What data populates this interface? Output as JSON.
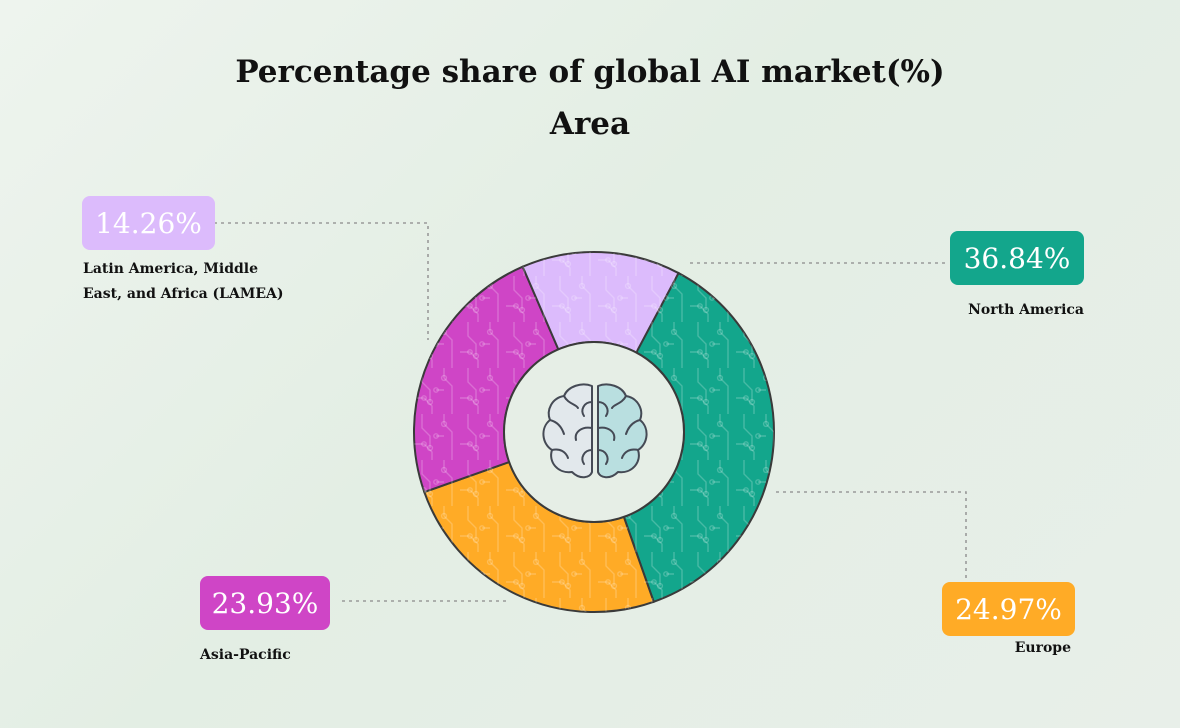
{
  "title": "Percentage share of global AI market(%)",
  "subtitle": "Area",
  "center_icon": "brain-icon",
  "chart_data": {
    "type": "pie",
    "title": "Percentage share of global AI market(%)",
    "subtitle": "Area",
    "unit": "%",
    "slices": [
      {
        "label": "North America",
        "value": 36.84,
        "display": "36.84%",
        "color": "#13a68c"
      },
      {
        "label": "Europe",
        "value": 24.97,
        "display": "24.97%",
        "color": "#ffab26"
      },
      {
        "label": "Asia-Pacific",
        "value": 23.93,
        "display": "23.93%",
        "color": "#cf45c6"
      },
      {
        "label": "Latin America, Middle East, and Africa (LAMEA)",
        "value": 14.26,
        "display": "14.26%",
        "color": "#dcbbfc"
      }
    ]
  },
  "labels": {
    "north_america": {
      "value": "36.84%",
      "name": "North America"
    },
    "europe": {
      "value": "24.97%",
      "name": "Europe"
    },
    "asia_pacific": {
      "value": "23.93%",
      "name": "Asia-Pacific"
    },
    "lamea": {
      "value": "14.26%",
      "name_line1": "Latin America, Middle",
      "name_line2": "East, and Africa (LAMEA)"
    }
  }
}
